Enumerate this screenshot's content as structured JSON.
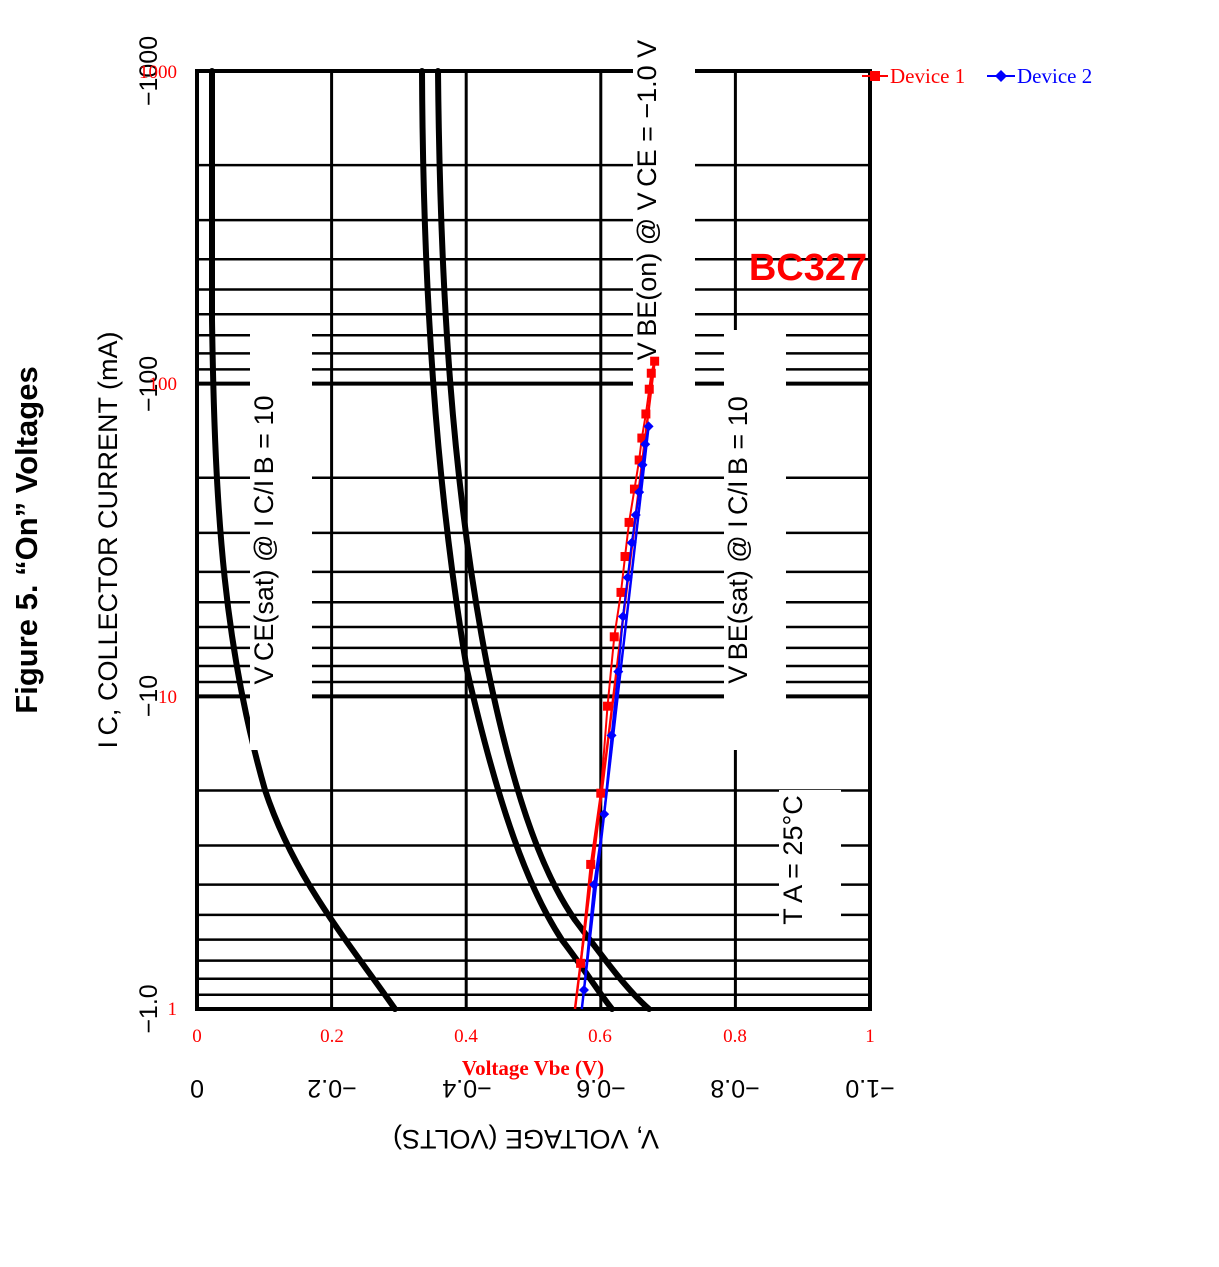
{
  "datasheet": {
    "figure_title": "Figure 5. “On” Voltages",
    "y_axis_title": "I C, COLLECTOR CURRENT (mA)",
    "x_axis_title": "V, VOLTAGE (VOLTS)",
    "y_ticks": [
      "−1.0",
      "−10",
      "−100",
      "−1000"
    ],
    "x_ticks": [
      "0",
      "−0.2",
      "−0.4",
      "−0.6",
      "−0.8",
      "−1.0"
    ],
    "annotations": {
      "vce_sat": "V CE(sat) @ I C/I B = 10",
      "vbe_sat": "V BE(sat) @ I C/I B = 10",
      "vbe_on": "V BE(on) @ V CE = −1.0 V",
      "temp": "T A = 25°C"
    },
    "line_color": "#000000"
  },
  "overlay": {
    "part_label": "BC327",
    "label_color": "#ff0000",
    "x_axis_title": "Voltage Vbe (V)",
    "y_ticks": [
      "1",
      "10",
      "100",
      "1000"
    ],
    "x_ticks": [
      "0",
      "0.2",
      "0.4",
      "0.6",
      "0.8",
      "1"
    ]
  },
  "chart_data": {
    "type": "line",
    "xlabel": "Voltage Vbe (V)",
    "ylabel": "",
    "xlim": [
      0,
      1
    ],
    "ylim": [
      1,
      1000
    ],
    "y_scale": "log",
    "legend_position": "top-right",
    "grid": true,
    "series": [
      {
        "name": "Device 1",
        "color": "#ff0000",
        "marker": "square",
        "points": [
          [
            0.57,
            1.4
          ],
          [
            0.585,
            2.9
          ],
          [
            0.6,
            4.9
          ],
          [
            0.61,
            9.3
          ],
          [
            0.62,
            15.5
          ],
          [
            0.63,
            21.5
          ],
          [
            0.636,
            28
          ],
          [
            0.642,
            36
          ],
          [
            0.65,
            46
          ],
          [
            0.657,
            57
          ],
          [
            0.661,
            67
          ],
          [
            0.667,
            80
          ],
          [
            0.672,
            96
          ],
          [
            0.675,
            108
          ],
          [
            0.68,
            118
          ]
        ]
      },
      {
        "name": "Device 2",
        "color": "#0000ff",
        "marker": "diamond",
        "points": [
          [
            0.575,
            1.15
          ],
          [
            0.59,
            2.5
          ],
          [
            0.605,
            4.2
          ],
          [
            0.616,
            7.5
          ],
          [
            0.626,
            12
          ],
          [
            0.633,
            18
          ],
          [
            0.64,
            24
          ],
          [
            0.646,
            31
          ],
          [
            0.652,
            38
          ],
          [
            0.657,
            45
          ],
          [
            0.662,
            55
          ],
          [
            0.666,
            64
          ],
          [
            0.671,
            73
          ]
        ]
      }
    ]
  }
}
